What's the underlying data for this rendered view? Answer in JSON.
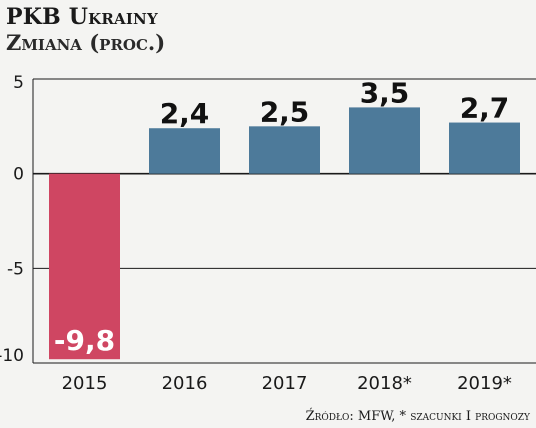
{
  "header": {
    "title": "PKB Ukrainy",
    "subtitle": "Zmiana (proc.)"
  },
  "footer": {
    "source": "Źródło: MFW, * szacunki I prognozy"
  },
  "colors": {
    "negative_bar": "#cf4662",
    "positive_bar": "#4d7a9a",
    "gridline": "#1a1a1a",
    "background": "#f4f4f2"
  },
  "chart_data": {
    "type": "bar",
    "categories": [
      "2015",
      "2016",
      "2017",
      "2018*",
      "2019*"
    ],
    "values": [
      -9.8,
      2.4,
      2.5,
      3.5,
      2.7
    ],
    "value_labels": [
      "-9,8",
      "2,4",
      "2,5",
      "3,5",
      "2,7"
    ],
    "ylim": [
      -10,
      5
    ],
    "yticks": [
      5,
      0,
      -5,
      -10
    ],
    "ytick_labels": [
      "5",
      "0",
      "-5",
      "-10"
    ],
    "grid": true,
    "legend": "none"
  }
}
